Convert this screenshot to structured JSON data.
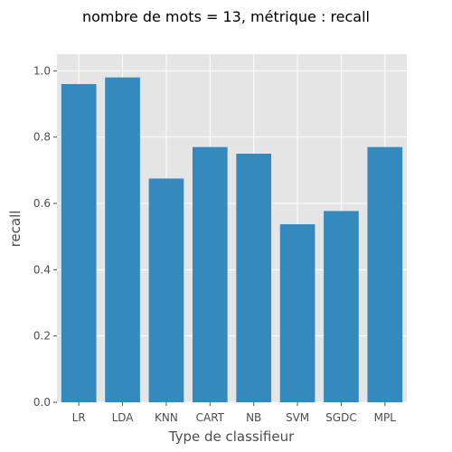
{
  "chart_data": {
    "type": "bar",
    "title": "nombre de mots = 13, métrique : recall",
    "xlabel": "Type de classifieur",
    "ylabel": "recall",
    "categories": [
      "LR",
      "LDA",
      "KNN",
      "CART",
      "NB",
      "SVM",
      "SGDC",
      "MPL"
    ],
    "values": [
      0.96,
      0.98,
      0.675,
      0.77,
      0.75,
      0.537,
      0.577,
      0.77
    ],
    "ylim": [
      0,
      1.05
    ],
    "yticks": [
      0.0,
      0.2,
      0.4,
      0.6,
      0.8,
      1.0
    ],
    "ytick_labels": [
      "0.0",
      "0.2",
      "0.4",
      "0.6",
      "0.8",
      "1.0"
    ],
    "grid": true,
    "colors": {
      "bar": "#348abd",
      "plot_background": "#e5e5e5",
      "grid": "#ffffff"
    }
  }
}
